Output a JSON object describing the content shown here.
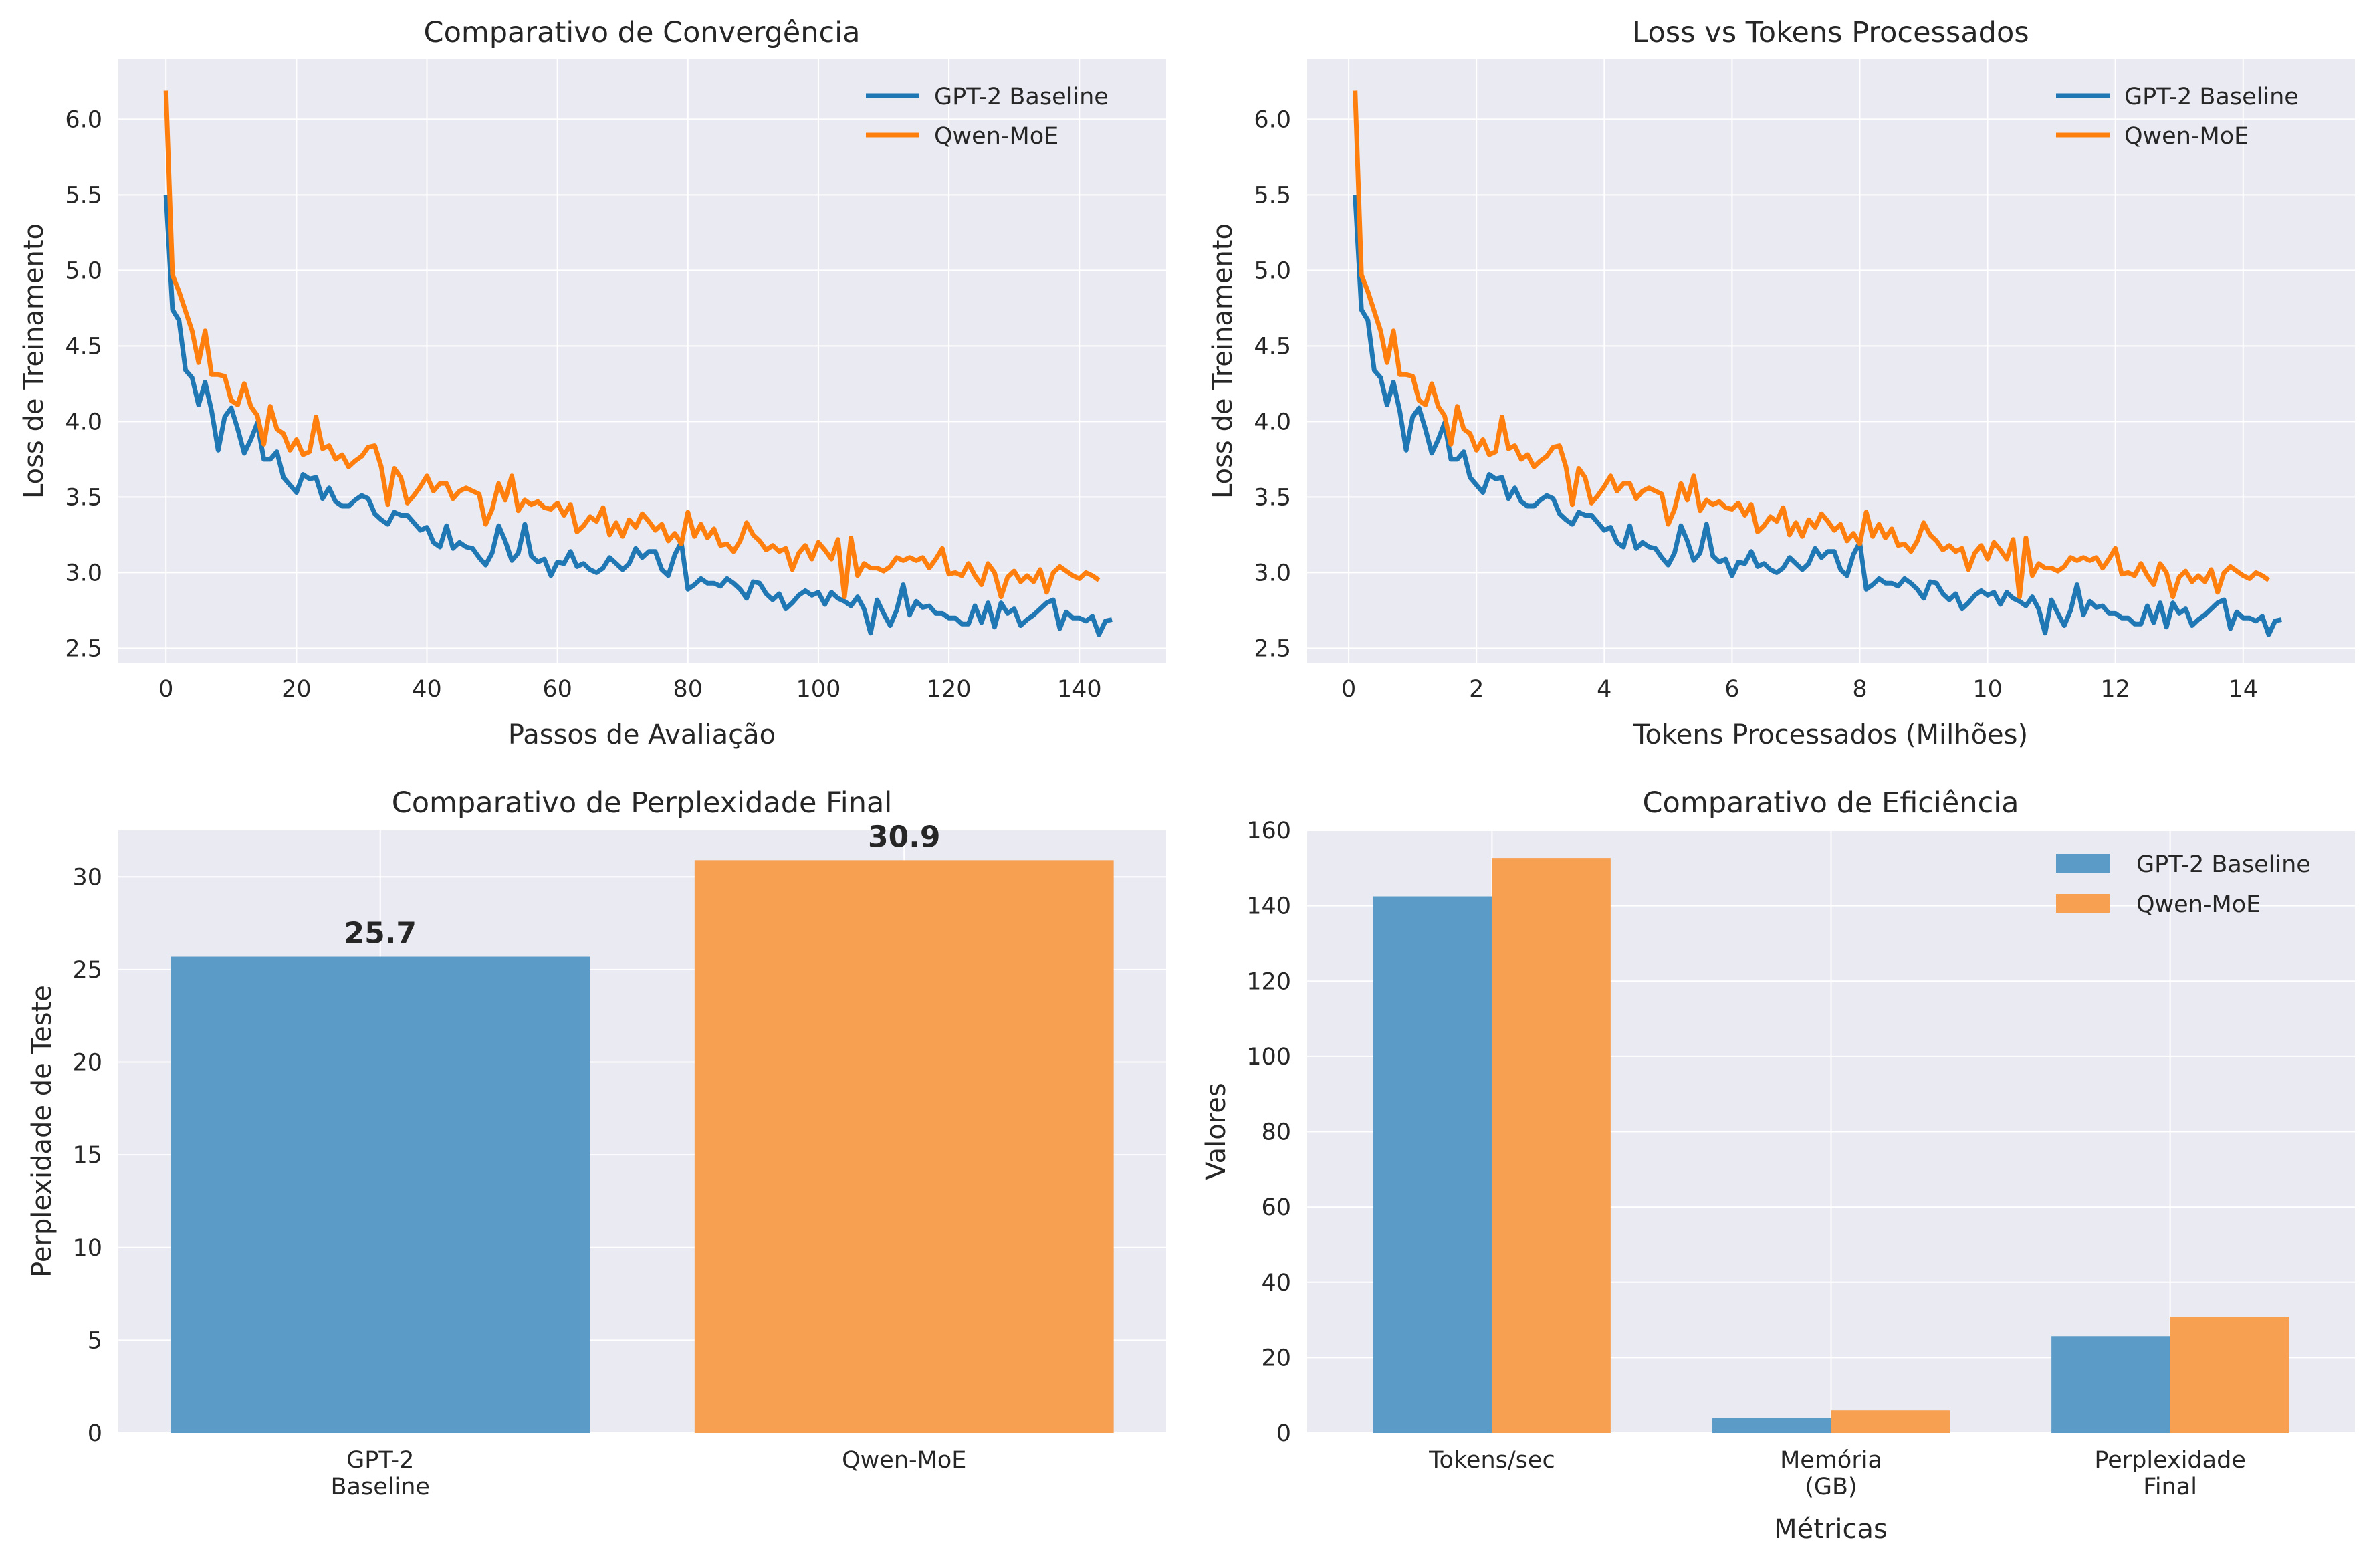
{
  "colors": {
    "baseline": "#1f77b4",
    "moe": "#ff7f0e",
    "baseline_bar": "#5b9bc7",
    "moe_bar": "#f7a052",
    "panel_bg": "#eaeaf2"
  },
  "chart_data": [
    {
      "type": "line",
      "title": "Comparativo de Convergência",
      "xlabel": "Passos de Avaliação",
      "ylabel": "Loss de Treinamento",
      "xlim": [
        -7.3,
        153.3
      ],
      "ylim": [
        2.4,
        6.4
      ],
      "xticks": [
        "0",
        "20",
        "40",
        "60",
        "80",
        "100",
        "120",
        "140"
      ],
      "yticks": [
        "2.5",
        "3.0",
        "3.5",
        "4.0",
        "4.5",
        "5.0",
        "5.5",
        "6.0"
      ],
      "legend": "top-right",
      "grid": true,
      "x_start": 0,
      "x_step": 1,
      "series": [
        {
          "name": "GPT-2 Baseline",
          "values": [
            5.5,
            4.74,
            4.67,
            4.34,
            4.29,
            4.11,
            4.26,
            4.07,
            3.81,
            4.03,
            4.09,
            3.95,
            3.79,
            3.88,
            3.99,
            3.75,
            3.75,
            3.8,
            3.63,
            3.58,
            3.53,
            3.65,
            3.62,
            3.63,
            3.49,
            3.56,
            3.47,
            3.44,
            3.44,
            3.48,
            3.51,
            3.49,
            3.39,
            3.35,
            3.32,
            3.4,
            3.38,
            3.38,
            3.33,
            3.28,
            3.3,
            3.2,
            3.17,
            3.31,
            3.16,
            3.2,
            3.17,
            3.16,
            3.1,
            3.05,
            3.13,
            3.31,
            3.21,
            3.08,
            3.13,
            3.32,
            3.11,
            3.07,
            3.09,
            2.98,
            3.07,
            3.06,
            3.14,
            3.04,
            3.06,
            3.02,
            3.0,
            3.03,
            3.1,
            3.06,
            3.02,
            3.06,
            3.16,
            3.1,
            3.14,
            3.14,
            3.02,
            2.98,
            3.12,
            3.2,
            2.89,
            2.92,
            2.96,
            2.93,
            2.93,
            2.91,
            2.96,
            2.93,
            2.89,
            2.83,
            2.94,
            2.93,
            2.86,
            2.82,
            2.86,
            2.76,
            2.8,
            2.85,
            2.88,
            2.85,
            2.87,
            2.79,
            2.87,
            2.83,
            2.81,
            2.78,
            2.84,
            2.76,
            2.6,
            2.82,
            2.73,
            2.65,
            2.75,
            2.92,
            2.72,
            2.81,
            2.77,
            2.78,
            2.73,
            2.73,
            2.7,
            2.7,
            2.66,
            2.66,
            2.78,
            2.67,
            2.8,
            2.64,
            2.8,
            2.73,
            2.76,
            2.65,
            2.69,
            2.72,
            2.76,
            2.8,
            2.82,
            2.63,
            2.74,
            2.7,
            2.7,
            2.68,
            2.71,
            2.59,
            2.68,
            2.69
          ]
        },
        {
          "name": "Qwen-MoE",
          "values": [
            6.19,
            4.97,
            4.86,
            4.73,
            4.6,
            4.39,
            4.6,
            4.31,
            4.31,
            4.3,
            4.14,
            4.11,
            4.25,
            4.1,
            4.04,
            3.85,
            4.1,
            3.95,
            3.92,
            3.81,
            3.88,
            3.78,
            3.8,
            4.03,
            3.82,
            3.84,
            3.75,
            3.78,
            3.7,
            3.74,
            3.77,
            3.83,
            3.84,
            3.7,
            3.45,
            3.69,
            3.63,
            3.46,
            3.51,
            3.57,
            3.64,
            3.54,
            3.59,
            3.59,
            3.49,
            3.54,
            3.56,
            3.54,
            3.52,
            3.32,
            3.42,
            3.59,
            3.48,
            3.64,
            3.41,
            3.48,
            3.45,
            3.47,
            3.43,
            3.42,
            3.46,
            3.38,
            3.45,
            3.27,
            3.31,
            3.37,
            3.34,
            3.43,
            3.25,
            3.33,
            3.24,
            3.35,
            3.3,
            3.39,
            3.34,
            3.28,
            3.32,
            3.21,
            3.26,
            3.19,
            3.4,
            3.24,
            3.32,
            3.23,
            3.29,
            3.18,
            3.19,
            3.14,
            3.21,
            3.33,
            3.25,
            3.21,
            3.15,
            3.18,
            3.14,
            3.16,
            3.02,
            3.13,
            3.18,
            3.09,
            3.2,
            3.15,
            3.09,
            3.22,
            2.84,
            3.23,
            2.98,
            3.06,
            3.03,
            3.03,
            3.01,
            3.04,
            3.1,
            3.08,
            3.1,
            3.08,
            3.1,
            3.03,
            3.09,
            3.16,
            2.99,
            3.0,
            2.98,
            3.06,
            2.98,
            2.92,
            3.06,
            3.0,
            2.84,
            2.97,
            3.01,
            2.94,
            2.98,
            2.94,
            3.02,
            2.87,
            3.0,
            3.04,
            3.01,
            2.98,
            2.96,
            3.0,
            2.98,
            2.95
          ]
        }
      ]
    },
    {
      "type": "line",
      "title": "Loss vs Tokens Processados",
      "xlabel": "Tokens Processados (Milhões)",
      "ylabel": "Loss de Treinamento",
      "xlim": [
        -0.65,
        15.75
      ],
      "ylim": [
        2.4,
        6.4
      ],
      "xticks": [
        "0",
        "2",
        "4",
        "6",
        "8",
        "10",
        "12",
        "14"
      ],
      "yticks": [
        "2.5",
        "3.0",
        "3.5",
        "4.0",
        "4.5",
        "5.0",
        "5.5",
        "6.0"
      ],
      "legend": "top-right",
      "grid": true,
      "x_start": 0.1,
      "x_step": 0.1,
      "same_values_as_chart": 0
    },
    {
      "type": "bar",
      "title": "Comparativo de Perplexidade Final",
      "ylabel": "Perplexidade de Teste",
      "categories": [
        "GPT-2\nBaseline",
        "Qwen-MoE"
      ],
      "values": [
        25.7,
        30.9
      ],
      "labels": [
        "25.7",
        "30.9"
      ],
      "ylim": [
        0,
        32.5
      ],
      "yticks": [
        "0",
        "5",
        "10",
        "15",
        "20",
        "25",
        "30"
      ],
      "grid": true
    },
    {
      "type": "bar",
      "title": "Comparativo de Eficiência",
      "xlabel": "Métricas",
      "ylabel": "Valores",
      "categories": [
        "Tokens/sec",
        "Memória\n(GB)",
        "Perplexidade\nFinal"
      ],
      "series": [
        {
          "name": "GPT-2 Baseline",
          "values": [
            142.5,
            4.0,
            25.7
          ]
        },
        {
          "name": "Qwen-MoE",
          "values": [
            152.7,
            6.0,
            30.9
          ]
        }
      ],
      "ylim": [
        0,
        160
      ],
      "yticks": [
        "0",
        "20",
        "40",
        "60",
        "80",
        "100",
        "120",
        "140",
        "160"
      ],
      "legend": "top-right",
      "grid": true
    }
  ]
}
